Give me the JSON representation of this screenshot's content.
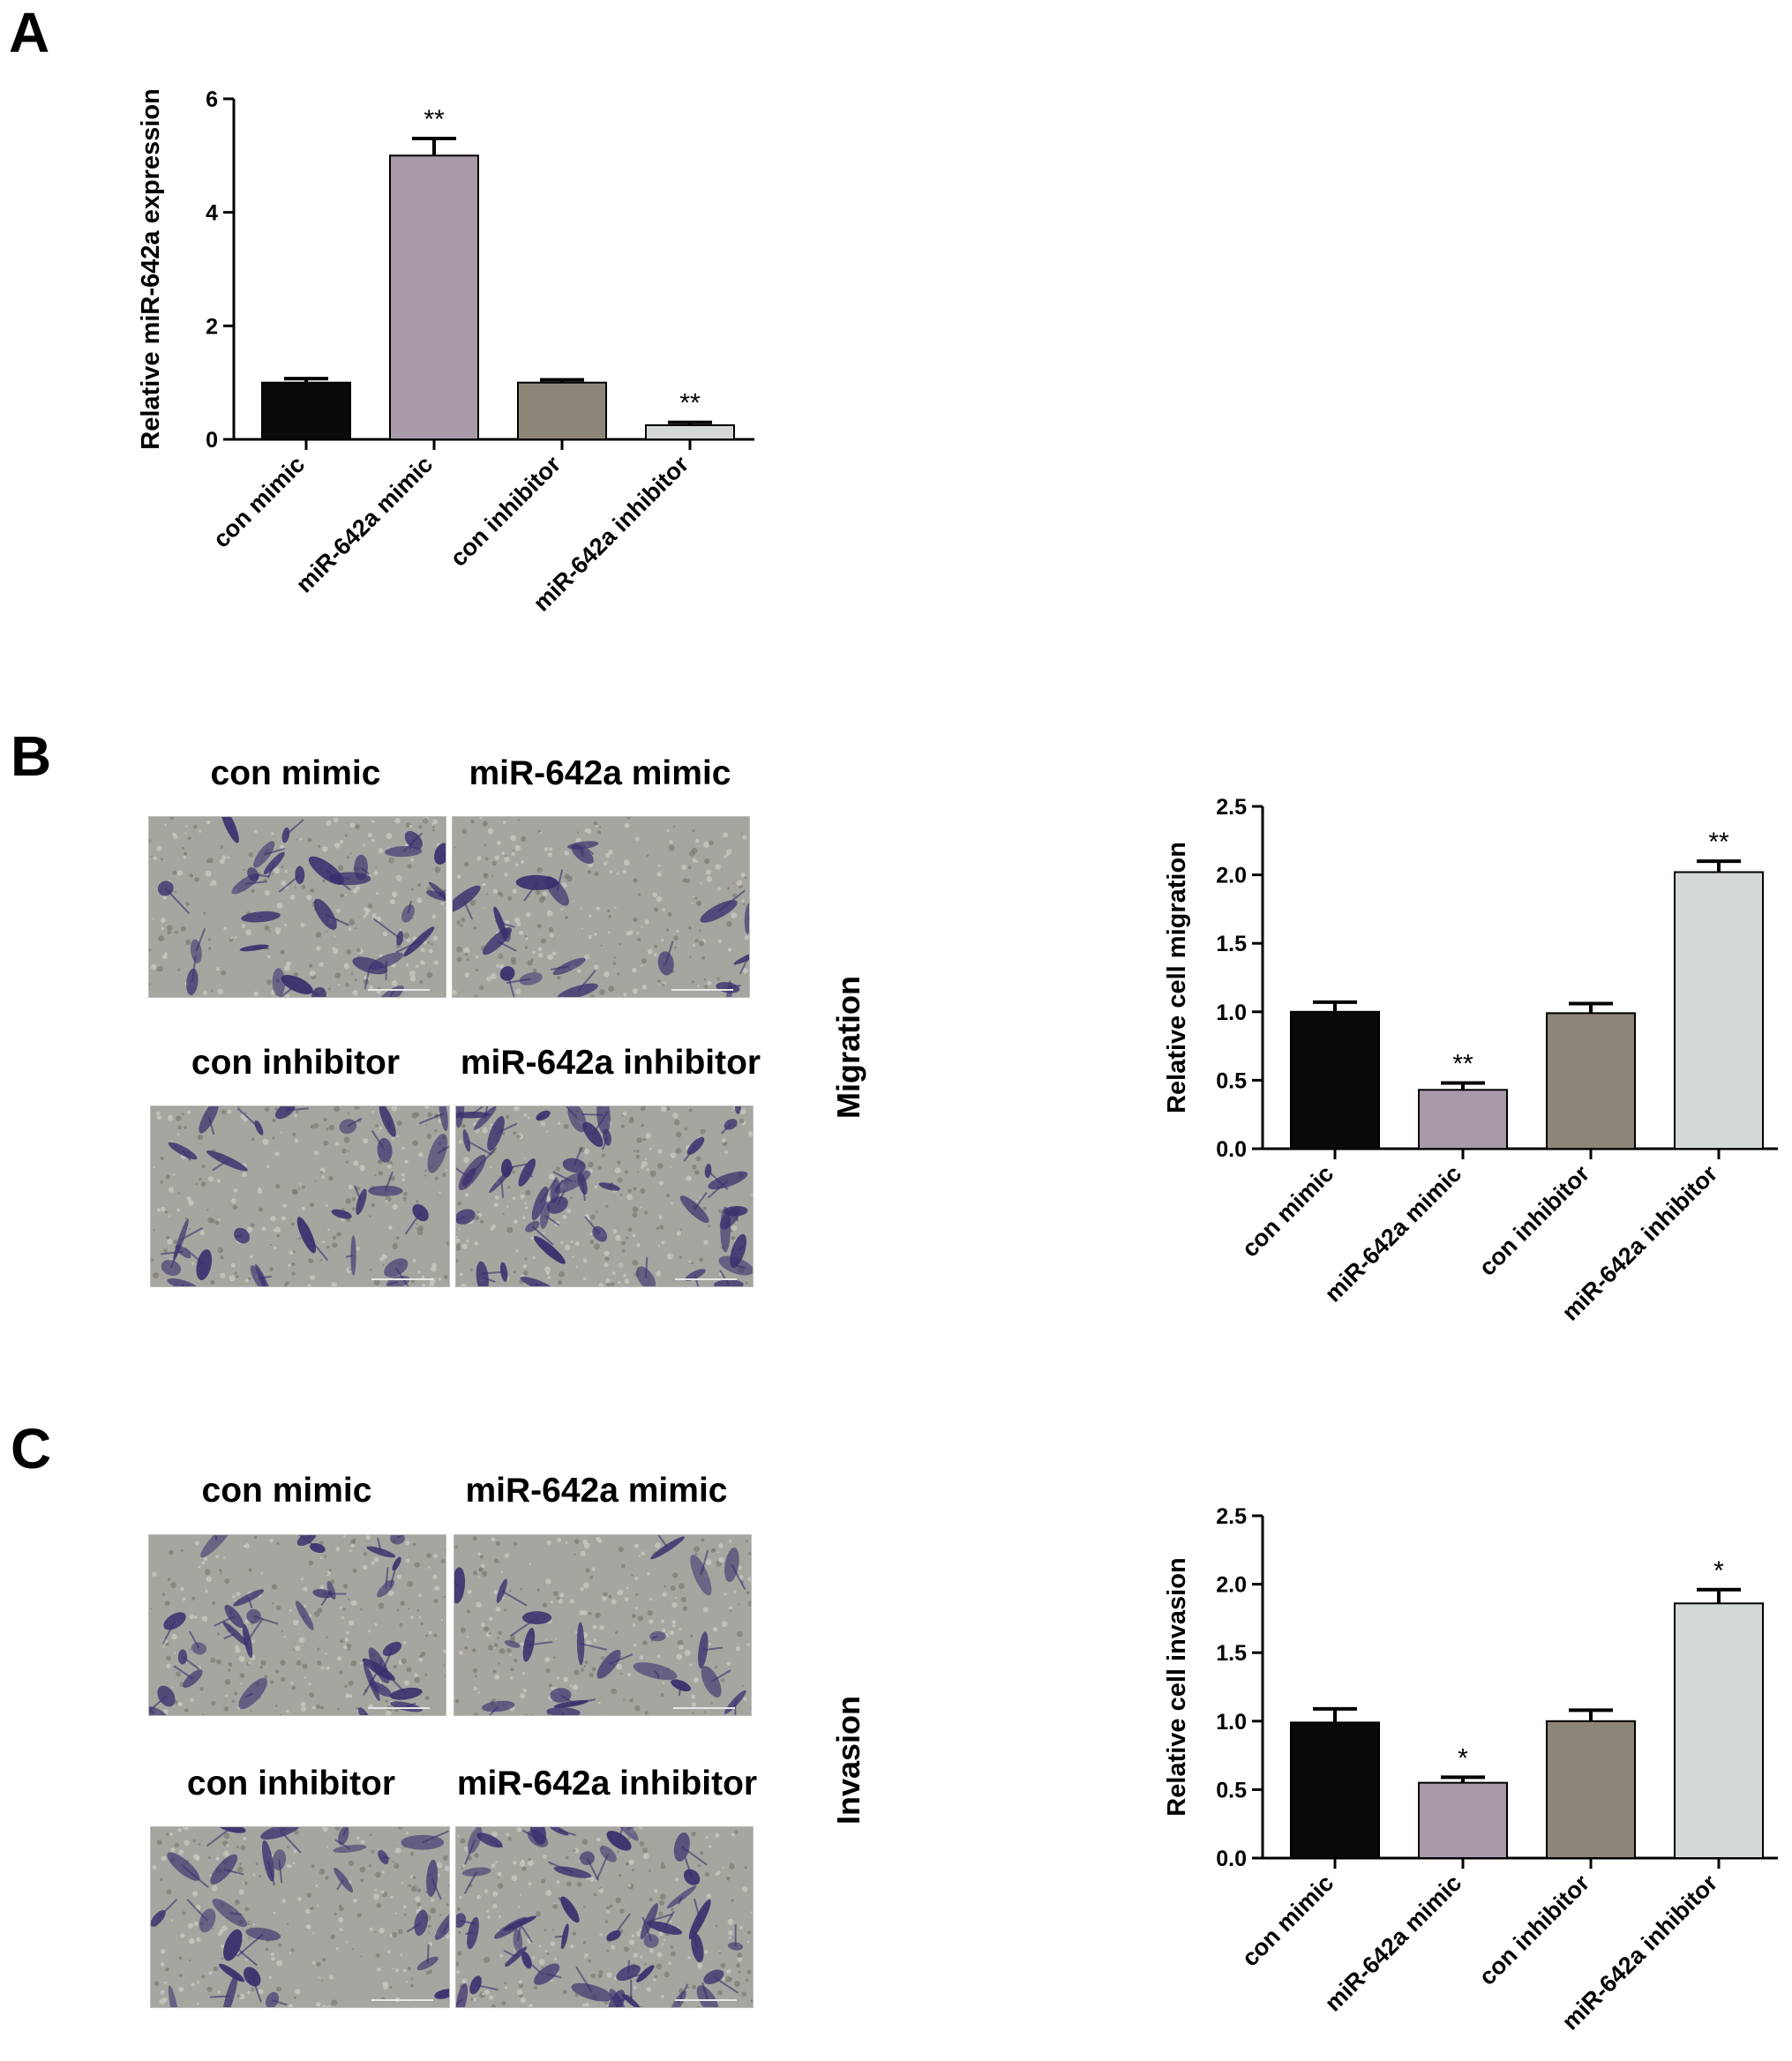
{
  "panels": {
    "A": {
      "letter": "A"
    },
    "B": {
      "letter": "B",
      "side_label": "Migration",
      "captions": [
        "con mimic",
        "miR-642a mimic",
        "con inhibitor",
        "miR-642a inhibitor"
      ]
    },
    "C": {
      "letter": "C",
      "side_label": "Invasion",
      "captions": [
        "con mimic",
        "miR-642a mimic",
        "con inhibitor",
        "miR-642a inhibitor"
      ]
    }
  },
  "colors": {
    "bar_colors": [
      "#0a0a0a",
      "#a89aa8",
      "#8e8579",
      "#d4d9d8"
    ],
    "stain_purple": "#3b2f6e",
    "background_grey": "#a7a59f"
  },
  "chart_data": [
    {
      "id": "A",
      "type": "bar",
      "categories": [
        "con mimic",
        "miR-642a mimic",
        "con inhibitor",
        "miR-642a inhibitor"
      ],
      "values": [
        1.0,
        5.0,
        1.0,
        0.25
      ],
      "errors": [
        0.07,
        0.3,
        0.05,
        0.05
      ],
      "annotations": [
        "",
        "**",
        "",
        "**"
      ],
      "ylabel": "Relative miR-642a expression",
      "ylim": [
        0,
        6
      ],
      "yticks": [
        "0",
        "2",
        "4",
        "6"
      ],
      "ytick_values": [
        0,
        2,
        4,
        6
      ]
    },
    {
      "id": "B",
      "type": "bar",
      "categories": [
        "con mimic",
        "miR-642a mimic",
        "con inhibitor",
        "miR-642a inhibitor"
      ],
      "values": [
        1.0,
        0.43,
        0.99,
        2.02
      ],
      "errors": [
        0.07,
        0.05,
        0.07,
        0.08
      ],
      "annotations": [
        "",
        "**",
        "",
        "**"
      ],
      "ylabel": "Relative cell migration",
      "ylim": [
        0,
        2.5
      ],
      "yticks": [
        "0.0",
        "0.5",
        "1.0",
        "1.5",
        "2.0",
        "2.5"
      ],
      "ytick_values": [
        0,
        0.5,
        1.0,
        1.5,
        2.0,
        2.5
      ]
    },
    {
      "id": "C",
      "type": "bar",
      "categories": [
        "con mimic",
        "miR-642a mimic",
        "con inhibitor",
        "miR-642a inhibitor"
      ],
      "values": [
        0.99,
        0.55,
        1.0,
        1.86
      ],
      "errors": [
        0.1,
        0.04,
        0.08,
        0.1
      ],
      "annotations": [
        "",
        "*",
        "",
        "*"
      ],
      "ylabel": "Relative cell invasion",
      "ylim": [
        0,
        2.5
      ],
      "yticks": [
        "0.0",
        "0.5",
        "1.0",
        "1.5",
        "2.0",
        "2.5"
      ],
      "ytick_values": [
        0,
        0.5,
        1.0,
        1.5,
        2.0,
        2.5
      ]
    }
  ]
}
